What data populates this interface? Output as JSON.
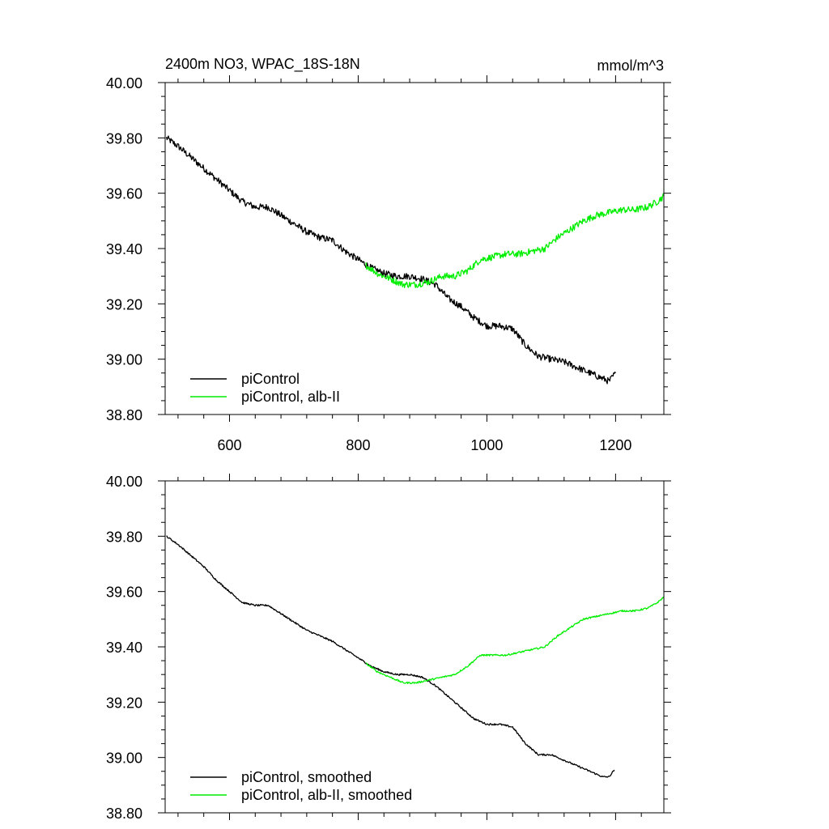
{
  "chart_data": [
    {
      "type": "line",
      "title": "2400m NO3, WPAC_18S-18N",
      "units": "mmol/m^3",
      "xlim": [
        500,
        1275
      ],
      "ylim": [
        38.8,
        40.0
      ],
      "xticks": [
        600,
        800,
        1000,
        1200
      ],
      "xtick_labels": [
        "600",
        "800",
        "1000",
        "1200"
      ],
      "yticks": [
        38.8,
        39.0,
        39.2,
        39.4,
        39.6,
        39.8,
        40.0
      ],
      "ytick_labels": [
        "38.80",
        "39.00",
        "39.20",
        "39.40",
        "39.60",
        "39.80",
        "40.00"
      ],
      "legend_position": "bottom-left",
      "series": [
        {
          "name": "piControl",
          "color": "#000000",
          "noise": 0.012,
          "x": [
            502,
            520,
            540,
            560,
            580,
            600,
            620,
            640,
            660,
            680,
            700,
            720,
            740,
            760,
            780,
            800,
            820,
            840,
            860,
            880,
            900,
            920,
            940,
            960,
            980,
            1000,
            1020,
            1040,
            1060,
            1080,
            1100,
            1120,
            1140,
            1160,
            1180,
            1190,
            1200
          ],
          "y": [
            39.8,
            39.77,
            39.73,
            39.69,
            39.65,
            39.61,
            39.57,
            39.55,
            39.55,
            39.52,
            39.49,
            39.46,
            39.44,
            39.43,
            39.39,
            39.36,
            39.33,
            39.31,
            39.3,
            39.3,
            39.29,
            39.27,
            39.22,
            39.19,
            39.15,
            39.12,
            39.12,
            39.11,
            39.05,
            39.01,
            39.0,
            38.99,
            38.97,
            38.95,
            38.93,
            38.92,
            38.95
          ]
        },
        {
          "name": "piControl, alb-II",
          "color": "#00ee00",
          "noise": 0.012,
          "x": [
            812,
            830,
            850,
            870,
            890,
            910,
            930,
            950,
            970,
            990,
            1010,
            1030,
            1050,
            1070,
            1090,
            1110,
            1130,
            1150,
            1170,
            1190,
            1210,
            1230,
            1250,
            1265,
            1275
          ],
          "y": [
            39.34,
            39.31,
            39.29,
            39.27,
            39.27,
            39.28,
            39.3,
            39.3,
            39.32,
            39.36,
            39.37,
            39.38,
            39.38,
            39.39,
            39.4,
            39.44,
            39.47,
            39.5,
            39.52,
            39.53,
            39.54,
            39.54,
            39.55,
            39.57,
            39.59
          ]
        }
      ]
    },
    {
      "type": "line",
      "xlim": [
        500,
        1275
      ],
      "ylim": [
        38.8,
        40.0
      ],
      "xticks": [
        600,
        800,
        1000,
        1200
      ],
      "yticks": [
        38.8,
        39.0,
        39.2,
        39.4,
        39.6,
        39.8,
        40.0
      ],
      "ytick_labels": [
        "38.80",
        "39.00",
        "39.20",
        "39.40",
        "39.60",
        "39.80",
        "40.00"
      ],
      "legend_position": "bottom-left",
      "series": [
        {
          "name": "piControl, smoothed",
          "color": "#000000",
          "noise": 0.003,
          "x": [
            502,
            520,
            540,
            560,
            580,
            600,
            620,
            640,
            660,
            680,
            700,
            720,
            740,
            760,
            780,
            800,
            820,
            840,
            860,
            880,
            900,
            920,
            940,
            960,
            980,
            1000,
            1020,
            1040,
            1060,
            1080,
            1100,
            1120,
            1140,
            1160,
            1180,
            1190,
            1198
          ],
          "y": [
            39.8,
            39.77,
            39.73,
            39.69,
            39.64,
            39.6,
            39.56,
            39.55,
            39.55,
            39.52,
            39.49,
            39.46,
            39.44,
            39.42,
            39.39,
            39.36,
            39.33,
            39.31,
            39.3,
            39.3,
            39.29,
            39.26,
            39.22,
            39.18,
            39.14,
            39.12,
            39.12,
            39.11,
            39.05,
            39.01,
            39.01,
            38.99,
            38.97,
            38.95,
            38.93,
            38.93,
            38.955
          ]
        },
        {
          "name": "piControl, alb-II, smoothed",
          "color": "#00ee00",
          "noise": 0.003,
          "x": [
            812,
            830,
            850,
            870,
            890,
            910,
            930,
            950,
            970,
            990,
            1010,
            1030,
            1050,
            1070,
            1090,
            1110,
            1130,
            1150,
            1170,
            1190,
            1210,
            1230,
            1250,
            1265,
            1275
          ],
          "y": [
            39.34,
            39.31,
            39.29,
            39.27,
            39.27,
            39.28,
            39.29,
            39.3,
            39.33,
            39.37,
            39.37,
            39.37,
            39.38,
            39.39,
            39.4,
            39.44,
            39.47,
            39.5,
            39.51,
            39.52,
            39.53,
            39.53,
            39.54,
            39.56,
            39.58
          ]
        }
      ]
    }
  ]
}
